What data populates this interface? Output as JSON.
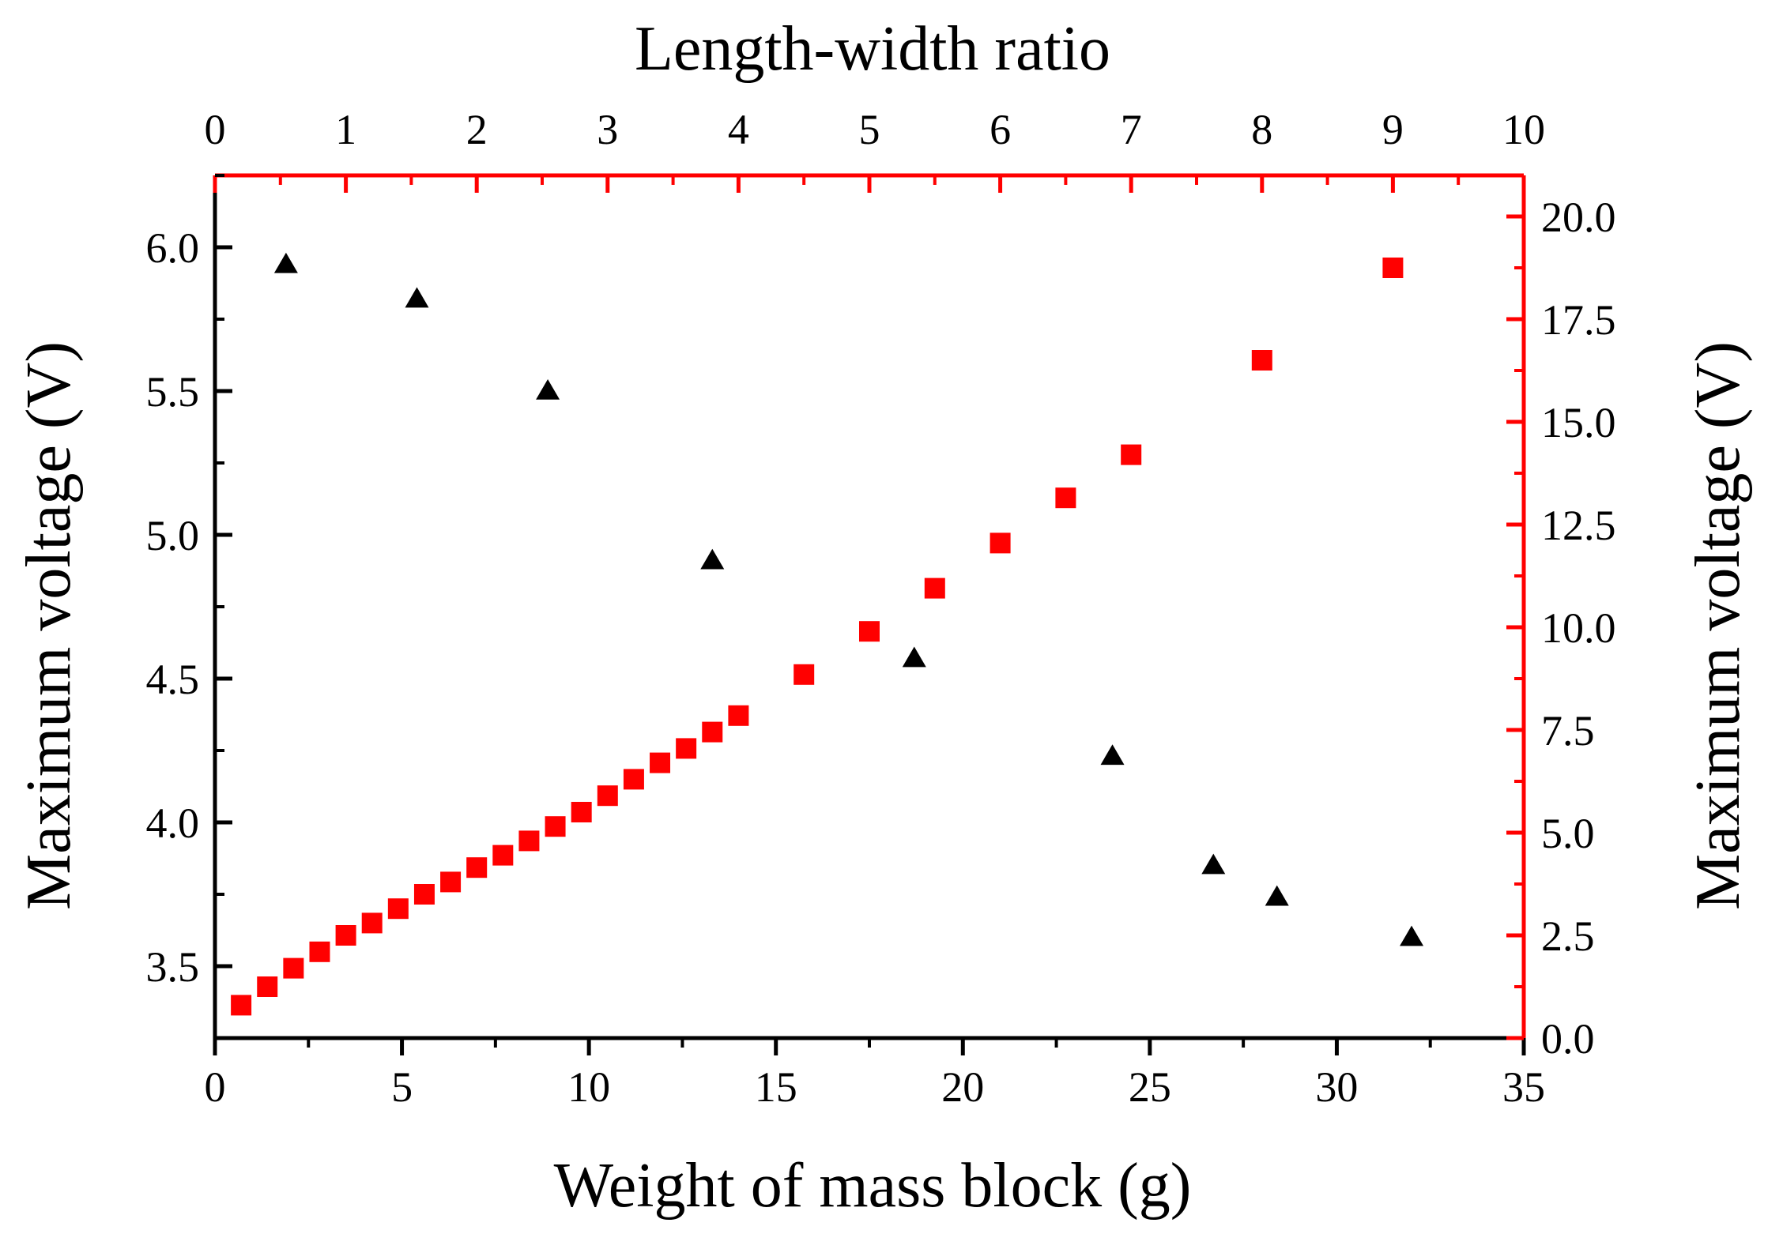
{
  "chart_data": {
    "type": "scatter",
    "title": "",
    "x_bottom": {
      "label": "Weight of mass block (g)",
      "range": [
        0,
        35
      ],
      "ticks": [
        0,
        5,
        10,
        15,
        20,
        25,
        30,
        35
      ],
      "tick_labels": [
        "0",
        "5",
        "10",
        "15",
        "20",
        "25",
        "30",
        "35"
      ]
    },
    "x_top": {
      "label": "Length-width ratio",
      "range": [
        0,
        10
      ],
      "ticks": [
        0,
        1,
        2,
        3,
        4,
        5,
        6,
        7,
        8,
        9,
        10
      ],
      "tick_labels": [
        "0",
        "1",
        "2",
        "3",
        "4",
        "5",
        "6",
        "7",
        "8",
        "9",
        "10"
      ],
      "color": "#ff0000"
    },
    "y_left": {
      "label": "Maximum voltage (V)",
      "range": [
        3.25,
        6.25
      ],
      "ticks": [
        3.5,
        4.0,
        4.5,
        5.0,
        5.5,
        6.0
      ],
      "tick_labels": [
        "3.5",
        "4.0",
        "4.5",
        "5.0",
        "5.5",
        "6.0"
      ]
    },
    "y_right": {
      "label": "Maximum voltage (V)",
      "range": [
        0,
        21
      ],
      "ticks": [
        0,
        2.5,
        5,
        7.5,
        10,
        12.5,
        15,
        17.5,
        20
      ],
      "tick_labels": [
        "0.0",
        "2.5",
        "5.0",
        "7.5",
        "10.0",
        "12.5",
        "15.0",
        "17.5",
        "20.0"
      ],
      "color": "#ff0000"
    },
    "grid": false,
    "series": [
      {
        "marker": "triangle",
        "color": "#000000",
        "x_axis": "bottom",
        "y_axis": "left",
        "x": [
          1.9,
          5.4,
          8.9,
          13.3,
          18.7,
          24.0,
          26.7,
          28.4,
          32.0
        ],
        "y": [
          5.94,
          5.82,
          5.5,
          4.91,
          4.57,
          4.23,
          3.85,
          3.74,
          3.6
        ]
      },
      {
        "marker": "square",
        "color": "#ff0000",
        "x_axis": "top",
        "y_axis": "right",
        "x": [
          0.2,
          0.4,
          0.6,
          0.8,
          1.0,
          1.2,
          1.4,
          1.6,
          1.8,
          2.0,
          2.2,
          2.4,
          2.6,
          2.8,
          3.0,
          3.2,
          3.4,
          3.6,
          3.8,
          4.0,
          4.5,
          5.0,
          5.5,
          6.0,
          6.5,
          7.0,
          8.0,
          9.0
        ],
        "y": [
          0.8,
          1.25,
          1.7,
          2.1,
          2.5,
          2.8,
          3.15,
          3.5,
          3.8,
          4.15,
          4.45,
          4.8,
          5.15,
          5.5,
          5.9,
          6.3,
          6.7,
          7.05,
          7.45,
          7.85,
          8.85,
          9.9,
          10.95,
          12.05,
          13.15,
          14.2,
          16.5,
          18.75
        ]
      }
    ]
  }
}
